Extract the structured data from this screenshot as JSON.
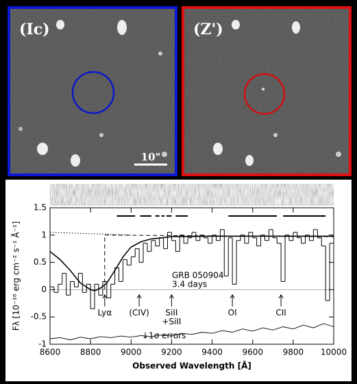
{
  "panels": [
    {
      "label": "(Ic)"
    },
    {
      "label": "(Z')"
    }
  ],
  "scale_label": "10\"",
  "chart_data": {
    "type": "step",
    "xlabel": "Observed Wavelength [Å]",
    "ylabel": "Fλ [10⁻¹⁸ erg cm⁻² s⁻¹ Å⁻¹]",
    "xlim": [
      8600,
      10000
    ],
    "xticks": [
      8600,
      8800,
      9000,
      9200,
      9400,
      9600,
      9800,
      10000
    ],
    "ylim": [
      -1,
      1.5
    ],
    "yticks": [
      -1,
      -0.5,
      0,
      0.5,
      1,
      1.5
    ],
    "step": 20,
    "x": [
      8600,
      8620,
      8640,
      8660,
      8680,
      8700,
      8720,
      8740,
      8760,
      8780,
      8800,
      8820,
      8840,
      8860,
      8880,
      8900,
      8920,
      8940,
      8960,
      8980,
      9000,
      9020,
      9040,
      9060,
      9080,
      9100,
      9120,
      9140,
      9160,
      9180,
      9200,
      9220,
      9240,
      9260,
      9280,
      9300,
      9320,
      9340,
      9360,
      9380,
      9400,
      9420,
      9440,
      9460,
      9480,
      9500,
      9520,
      9540,
      9560,
      9580,
      9600,
      9620,
      9640,
      9660,
      9680,
      9700,
      9720,
      9740,
      9760,
      9780,
      9800,
      9820,
      9840,
      9860,
      9880,
      9900,
      9920,
      9940,
      9960,
      9980
    ],
    "values": [
      0.05,
      -0.05,
      0.1,
      0.3,
      -0.1,
      0.15,
      0.05,
      0.3,
      -0.05,
      0.1,
      -0.35,
      0.1,
      -0.1,
      0.15,
      -0.15,
      0.1,
      0.4,
      0.15,
      0.55,
      0.45,
      0.6,
      0.75,
      0.5,
      0.85,
      0.7,
      0.9,
      0.8,
      0.95,
      0.75,
      1.05,
      0.9,
      0.7,
      1.0,
      0.85,
      0.95,
      1.05,
      0.9,
      1.0,
      0.95,
      0.85,
      1.0,
      0.9,
      1.1,
      0.25,
      0.95,
      0.1,
      0.9,
      1.0,
      0.85,
      1.05,
      0.95,
      0.8,
      1.0,
      0.9,
      1.1,
      0.95,
      0.85,
      0.15,
      1.0,
      0.9,
      1.05,
      0.95,
      0.85,
      1.0,
      0.9,
      1.1,
      0.95,
      0.8,
      -0.2,
      0.85
    ],
    "model": {
      "x": [
        8600,
        8650,
        8700,
        8750,
        8800,
        8820,
        8850,
        8880,
        8920,
        8960,
        9000,
        9050,
        9100,
        9200,
        9400,
        10000
      ],
      "y": [
        0.7,
        0.55,
        0.35,
        0.12,
        0,
        -0.02,
        0.03,
        0.12,
        0.35,
        0.6,
        0.78,
        0.88,
        0.93,
        0.97,
        0.98,
        0.98
      ]
    },
    "dashed_model": {
      "x": [
        8870,
        8870,
        10000
      ],
      "y": [
        0,
        1.0,
        0.97
      ]
    },
    "dotted_model": {
      "x": [
        8600,
        9000
      ],
      "y": [
        1.05,
        1.0
      ]
    },
    "errors": {
      "x": [
        8600,
        8650,
        8700,
        8750,
        8800,
        8850,
        8900,
        8950,
        9000,
        9050,
        9100,
        9150,
        9200,
        9250,
        9300,
        9350,
        9400,
        9450,
        9500,
        9550,
        9600,
        9650,
        9700,
        9750,
        9800,
        9850,
        9900,
        9950,
        10000
      ],
      "y": [
        -0.9,
        -0.88,
        -0.92,
        -0.87,
        -0.9,
        -0.86,
        -0.88,
        -0.85,
        -0.87,
        -0.84,
        -0.86,
        -0.83,
        -0.85,
        -0.8,
        -0.82,
        -0.78,
        -0.8,
        -0.75,
        -0.78,
        -0.72,
        -0.76,
        -0.7,
        -0.74,
        -0.68,
        -0.72,
        -0.65,
        -0.7,
        -0.62,
        -0.68
      ]
    },
    "bands_y": 1.35,
    "bands": [
      [
        8930,
        9020
      ],
      [
        9045,
        9100
      ],
      [
        9120,
        9140
      ],
      [
        9150,
        9165
      ],
      [
        9175,
        9200
      ],
      [
        9220,
        9280
      ],
      [
        9480,
        9720
      ],
      [
        9750,
        9960
      ]
    ],
    "annotations": [
      {
        "text": "Lyα",
        "x": 8870
      },
      {
        "text": "(CIV)",
        "x": 9040
      },
      {
        "text": "SiII\n+SiII",
        "x": 9200
      },
      {
        "text": "OI",
        "x": 9500
      },
      {
        "text": "CII",
        "x": 9740
      }
    ],
    "source": "GRB 050904",
    "epoch": "3.4 days",
    "error_label": "↓1σ errors"
  }
}
